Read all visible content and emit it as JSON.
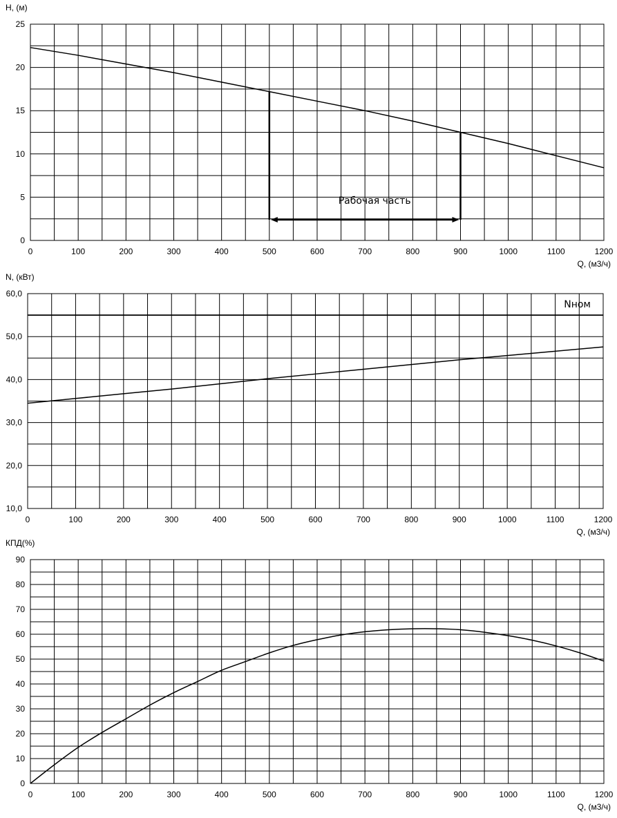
{
  "chart_data": [
    {
      "type": "line",
      "ylabel": "H, (м)",
      "xlabel": "Q, (м3/ч)",
      "xlim": [
        0,
        1200
      ],
      "ylim": [
        0,
        25
      ],
      "x_ticks": [
        "0",
        "100",
        "200",
        "300",
        "400",
        "500",
        "600",
        "700",
        "800",
        "900",
        "1000",
        "1100",
        "1200"
      ],
      "y_ticks": [
        "0",
        "5",
        "10",
        "15",
        "20",
        "25"
      ],
      "grid": true,
      "series": [
        {
          "x": [
            0,
            100,
            200,
            300,
            400,
            500,
            600,
            700,
            800,
            900,
            1000,
            1100,
            1200
          ],
          "values": [
            22.3,
            21.4,
            20.4,
            19.4,
            18.3,
            17.2,
            16.1,
            15.0,
            13.8,
            12.5,
            11.2,
            9.8,
            8.4
          ]
        }
      ],
      "annotations": [
        {
          "text": "Рабочая часть",
          "x_range": [
            500,
            900
          ],
          "arrow_y": 2.4,
          "left_top_y": 17.2,
          "right_top_y": 12.5
        }
      ]
    },
    {
      "type": "line",
      "ylabel": "N, (кВт)",
      "xlabel": "Q, (м3/ч)",
      "xlim": [
        0,
        1200
      ],
      "ylim": [
        10,
        60
      ],
      "x_ticks": [
        "0",
        "100",
        "200",
        "300",
        "400",
        "500",
        "600",
        "700",
        "800",
        "900",
        "1000",
        "1100",
        "1200"
      ],
      "y_ticks": [
        "10,0",
        "20,0",
        "30,0",
        "40,0",
        "50,0",
        "60,0"
      ],
      "grid": true,
      "series": [
        {
          "x": [
            0,
            100,
            200,
            300,
            400,
            500,
            600,
            700,
            800,
            900,
            1000,
            1100,
            1200
          ],
          "values": [
            34.5,
            35.6,
            36.7,
            37.8,
            39.0,
            40.2,
            41.3,
            42.4,
            43.5,
            44.6,
            45.6,
            46.6,
            47.6
          ]
        },
        {
          "name": "Nном",
          "x": [
            0,
            1200
          ],
          "values": [
            55,
            55
          ]
        }
      ]
    },
    {
      "type": "line",
      "ylabel": "КПД(%)",
      "xlabel": "Q, (м3/ч)",
      "xlim": [
        0,
        1200
      ],
      "ylim": [
        0,
        90
      ],
      "x_ticks": [
        "0",
        "100",
        "200",
        "300",
        "400",
        "500",
        "600",
        "700",
        "800",
        "900",
        "1000",
        "1100",
        "1200"
      ],
      "y_ticks": [
        "0",
        "10",
        "20",
        "30",
        "40",
        "50",
        "60",
        "70",
        "80",
        "90"
      ],
      "grid": true,
      "series": [
        {
          "x": [
            0,
            50,
            100,
            150,
            200,
            250,
            300,
            350,
            400,
            450,
            500,
            550,
            600,
            650,
            700,
            750,
            800,
            850,
            900,
            950,
            1000,
            1050,
            1100,
            1150,
            1200
          ],
          "values": [
            0,
            7.5,
            14.5,
            20.5,
            26.0,
            31.5,
            36.5,
            41.0,
            45.5,
            49.0,
            52.5,
            55.5,
            57.8,
            59.7,
            61.0,
            61.8,
            62.2,
            62.2,
            61.8,
            60.8,
            59.4,
            57.6,
            55.3,
            52.5,
            49.2
          ]
        }
      ]
    }
  ]
}
